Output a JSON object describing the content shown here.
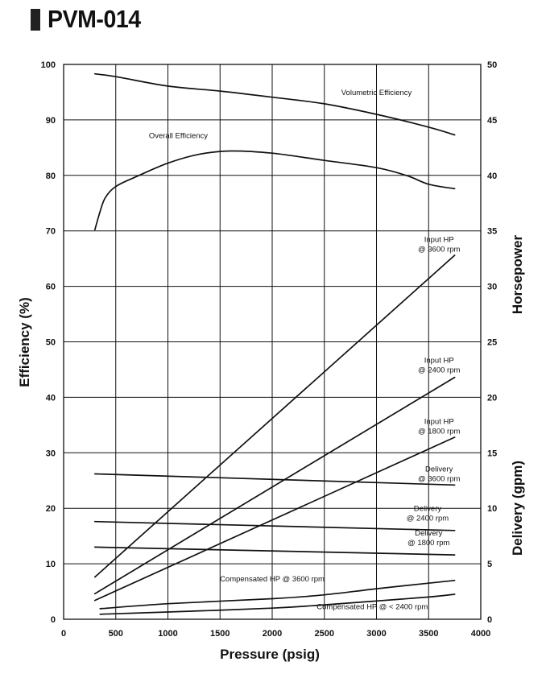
{
  "title": "PVM-014",
  "chart_data": {
    "type": "line",
    "xlabel": "Pressure (psig)",
    "ylabel_left": "Efficiency (%)",
    "ylabel_right_top": "Horsepower",
    "ylabel_right_bottom": "Delivery (gpm)",
    "xlim": [
      0,
      4000
    ],
    "ylim_left": [
      0,
      100
    ],
    "ylim_right": [
      0,
      50
    ],
    "x_ticks": [
      "0",
      "500",
      "1000",
      "1500",
      "2000",
      "2500",
      "3000",
      "3500",
      "4000"
    ],
    "y_ticks_left": [
      "0",
      "10",
      "20",
      "30",
      "40",
      "50",
      "60",
      "70",
      "80",
      "90",
      "100"
    ],
    "y_ticks_right": [
      "0",
      "5",
      "10",
      "15",
      "20",
      "25",
      "30",
      "35",
      "40",
      "45",
      "50"
    ],
    "grid": true,
    "series": [
      {
        "name": "Volumetric Efficiency",
        "axis": "left",
        "x": [
          300,
          500,
          1000,
          1500,
          2000,
          2500,
          3000,
          3500,
          3750
        ],
        "y": [
          98.3,
          97.8,
          96.1,
          95.2,
          94.1,
          92.9,
          91.0,
          88.7,
          87.3
        ]
      },
      {
        "name": "Overall Efficiency",
        "axis": "left",
        "x": [
          300,
          350,
          400,
          500,
          700,
          1000,
          1300,
          1600,
          2000,
          2500,
          3000,
          3300,
          3500,
          3750
        ],
        "y": [
          70.2,
          73.5,
          76.0,
          78.0,
          79.8,
          82.2,
          83.8,
          84.4,
          84.0,
          82.7,
          81.4,
          79.9,
          78.4,
          77.6
        ]
      },
      {
        "name": "Input HP @ 3600 rpm",
        "axis": "right",
        "x": [
          300,
          3750
        ],
        "y": [
          3.8,
          32.8
        ]
      },
      {
        "name": "Input HP @ 2400 rpm",
        "axis": "right",
        "x": [
          300,
          3750
        ],
        "y": [
          2.3,
          21.8
        ]
      },
      {
        "name": "Input HP @ 1800 rpm",
        "axis": "right",
        "x": [
          300,
          3750
        ],
        "y": [
          1.7,
          16.4
        ]
      },
      {
        "name": "Delivery @ 3600 rpm",
        "axis": "right",
        "x": [
          300,
          3750
        ],
        "y": [
          13.1,
          12.1
        ]
      },
      {
        "name": "Delivery @ 2400 rpm",
        "axis": "right",
        "x": [
          300,
          3750
        ],
        "y": [
          8.8,
          8.0
        ]
      },
      {
        "name": "Delivery @ 1800 rpm",
        "axis": "right",
        "x": [
          300,
          3750
        ],
        "y": [
          6.5,
          5.8
        ]
      },
      {
        "name": "Compensated HP @ 3600 rpm",
        "axis": "right",
        "x": [
          350,
          1000,
          2000,
          2500,
          3000,
          3500,
          3750
        ],
        "y": [
          0.95,
          1.4,
          1.85,
          2.2,
          2.75,
          3.25,
          3.5
        ]
      },
      {
        "name": "Compensated HP @ < 2400 rpm",
        "axis": "right",
        "x": [
          350,
          1000,
          2000,
          2500,
          3000,
          3500,
          3750
        ],
        "y": [
          0.45,
          0.65,
          1.0,
          1.3,
          1.65,
          2.0,
          2.25
        ]
      }
    ],
    "annotations": [
      {
        "lines": [
          "Volumetric Efficiency"
        ],
        "x": 3000,
        "y_left": 94.5
      },
      {
        "lines": [
          "Overall Efficiency"
        ],
        "x": 1100,
        "y_left": 86.7
      },
      {
        "lines": [
          "Input HP",
          "@ 3600 rpm"
        ],
        "x": 3600,
        "y_left": 68.0
      },
      {
        "lines": [
          "Input HP",
          "@ 2400 rpm"
        ],
        "x": 3600,
        "y_left": 46.2
      },
      {
        "lines": [
          "Input HP",
          "@ 1800 rpm"
        ],
        "x": 3600,
        "y_left": 35.2
      },
      {
        "lines": [
          "Delivery",
          "@ 3600 rpm"
        ],
        "x": 3600,
        "y_left": 26.6
      },
      {
        "lines": [
          "Delivery",
          "@ 2400 rpm"
        ],
        "x": 3490,
        "y_left": 19.5
      },
      {
        "lines": [
          "Delivery",
          "@ 1800 rpm"
        ],
        "x": 3500,
        "y_left": 15.1
      },
      {
        "lines": [
          "Compensated HP @ 3600 rpm"
        ],
        "x": 2000,
        "y_left": 6.8
      },
      {
        "lines": [
          "Compensated HP @ < 2400 rpm"
        ],
        "x": 2960,
        "y_left": 1.8
      }
    ]
  }
}
